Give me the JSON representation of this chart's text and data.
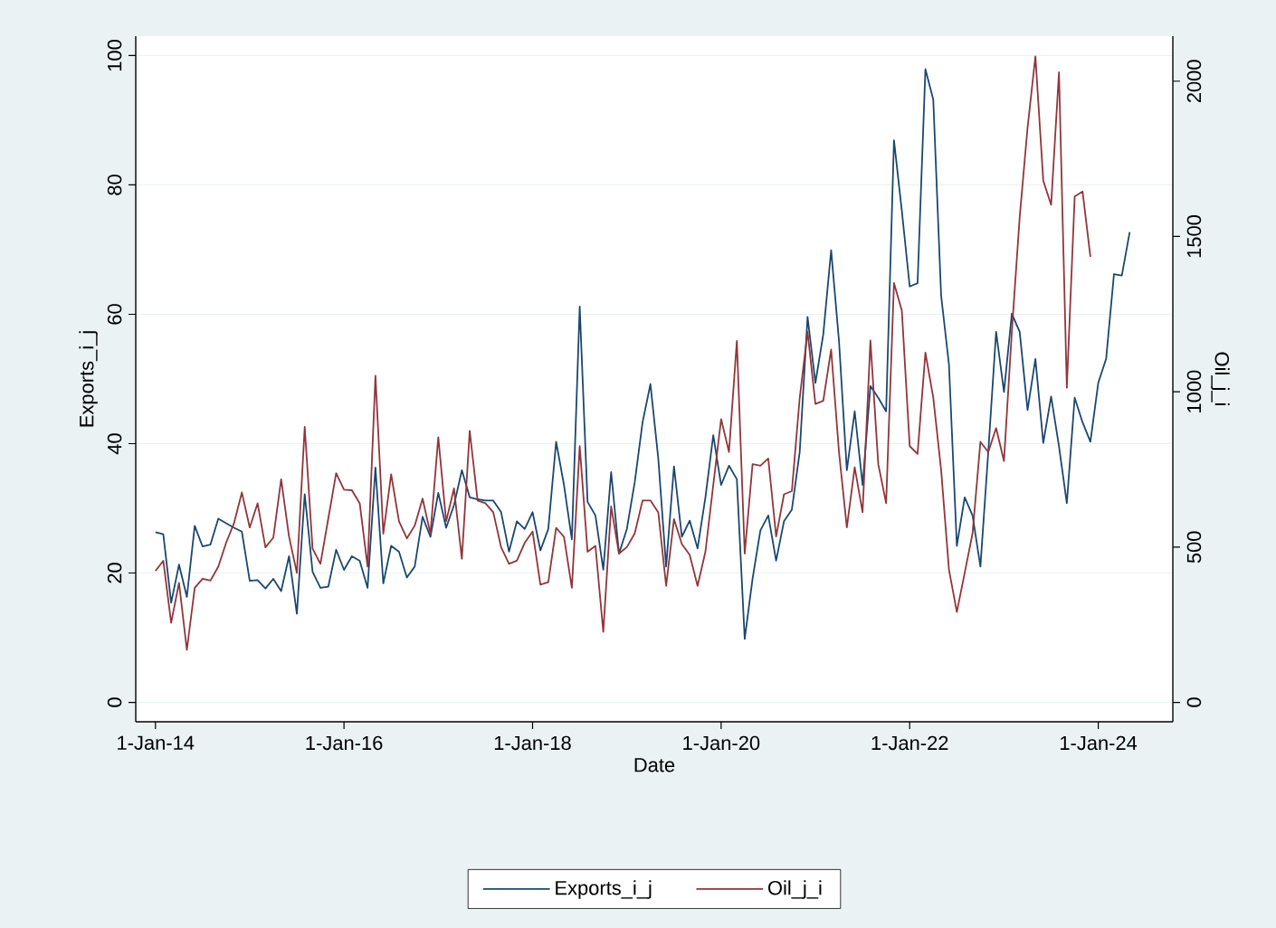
{
  "chart_data": {
    "type": "line",
    "xlabel": "Date",
    "ylabel": "Exports_i_j",
    "y2label": "Oil_j_i",
    "xlim": [
      "2013-10-16",
      "2024-10-16"
    ],
    "xticks": [
      {
        "value": "2014-01-01",
        "label": "1-Jan-14"
      },
      {
        "value": "2016-01-01",
        "label": "1-Jan-16"
      },
      {
        "value": "2018-01-01",
        "label": "1-Jan-18"
      },
      {
        "value": "2020-01-01",
        "label": "1-Jan-20"
      },
      {
        "value": "2022-01-01",
        "label": "1-Jan-22"
      },
      {
        "value": "2024-01-01",
        "label": "1-Jan-24"
      }
    ],
    "ylim": [
      -3,
      103
    ],
    "yticks": [
      0,
      20,
      40,
      60,
      80,
      100
    ],
    "y2lim": [
      -62.5,
      2145
    ],
    "y2ticks": [
      0,
      500,
      1000,
      1500,
      2000
    ],
    "grid": "y",
    "legend": "bottom",
    "series": [
      {
        "name": "Exports_i_j",
        "color": "#1a476f",
        "x": [
          "2014-01",
          "2014-02",
          "2014-03",
          "2014-04",
          "2014-05",
          "2014-06",
          "2014-07",
          "2014-08",
          "2014-09",
          "2014-10",
          "2014-11",
          "2014-12",
          "2015-01",
          "2015-02",
          "2015-03",
          "2015-04",
          "2015-05",
          "2015-06",
          "2015-07",
          "2015-08",
          "2015-09",
          "2015-10",
          "2015-11",
          "2015-12",
          "2016-01",
          "2016-02",
          "2016-03",
          "2016-04",
          "2016-05",
          "2016-06",
          "2016-07",
          "2016-08",
          "2016-09",
          "2016-10",
          "2016-11",
          "2016-12",
          "2017-01",
          "2017-02",
          "2017-03",
          "2017-04",
          "2017-05",
          "2017-06",
          "2017-07",
          "2017-08",
          "2017-09",
          "2017-10",
          "2017-11",
          "2017-12",
          "2018-01",
          "2018-02",
          "2018-03",
          "2018-04",
          "2018-05",
          "2018-06",
          "2018-07",
          "2018-08",
          "2018-09",
          "2018-10",
          "2018-11",
          "2018-12",
          "2019-01",
          "2019-02",
          "2019-03",
          "2019-04",
          "2019-05",
          "2019-06",
          "2019-07",
          "2019-08",
          "2019-09",
          "2019-10",
          "2019-11",
          "2019-12",
          "2020-01",
          "2020-02",
          "2020-03",
          "2020-04",
          "2020-05",
          "2020-06",
          "2020-07",
          "2020-08",
          "2020-09",
          "2020-10",
          "2020-11",
          "2020-12",
          "2021-01",
          "2021-02",
          "2021-03",
          "2021-04",
          "2021-05",
          "2021-06",
          "2021-07",
          "2021-08",
          "2021-09",
          "2021-10",
          "2021-11",
          "2021-12",
          "2022-01",
          "2022-02",
          "2022-03",
          "2022-04",
          "2022-05",
          "2022-06",
          "2022-07",
          "2022-08",
          "2022-09",
          "2022-10",
          "2022-11",
          "2022-12",
          "2023-01",
          "2023-02",
          "2023-03",
          "2023-04",
          "2023-05",
          "2023-06",
          "2023-07",
          "2023-08",
          "2023-09",
          "2023-10",
          "2023-11",
          "2023-12",
          "2024-01",
          "2024-02",
          "2024-03",
          "2024-04",
          "2024-05"
        ],
        "values": [
          26.3,
          26,
          15.4,
          21.3,
          16.3,
          27.3,
          24.1,
          24.4,
          28.4,
          27.7,
          27,
          26.4,
          18.8,
          18.9,
          17.6,
          19.1,
          17.2,
          22.6,
          13.7,
          32.2,
          20.2,
          17.7,
          17.9,
          23.6,
          20.5,
          22.6,
          21.9,
          17.7,
          36.3,
          18.4,
          24.2,
          23.3,
          19.3,
          21,
          28.7,
          25.6,
          32.4,
          27,
          30.5,
          35.9,
          31.7,
          31.4,
          31.2,
          31.2,
          29.4,
          23.3,
          28,
          26.8,
          29.4,
          23.5,
          26.8,
          40.3,
          33.6,
          25.2,
          61.2,
          31,
          28.9,
          20.5,
          35.6,
          23,
          26.8,
          34,
          43.3,
          49.2,
          37.7,
          21,
          36.5,
          25.6,
          28.1,
          23.8,
          31.7,
          41.3,
          33.6,
          36.6,
          34.5,
          9.8,
          19.1,
          26.6,
          28.9,
          21.9,
          28,
          29.8,
          38.7,
          59.6,
          49.4,
          56.9,
          69.9,
          55.9,
          35.9,
          45,
          33.6,
          48.9,
          47.1,
          45,
          86.9,
          76,
          64.3,
          64.8,
          97.9,
          93.2,
          62.9,
          52.2,
          24.2,
          31.7,
          28.9,
          21,
          38.7,
          57.3,
          48,
          60.1,
          57.3,
          45.2,
          53.1,
          40.1,
          47.3,
          39.6,
          30.8,
          47.1,
          43.3,
          40.3,
          49.4,
          53.1,
          66.2,
          66,
          72.7
        ]
      },
      {
        "name": "Oil_j_i",
        "color": "#90353b",
        "axis": "y2",
        "x": [
          "2014-01",
          "2014-02",
          "2014-03",
          "2014-04",
          "2014-05",
          "2014-06",
          "2014-07",
          "2014-08",
          "2014-09",
          "2014-10",
          "2014-11",
          "2014-12",
          "2015-01",
          "2015-02",
          "2015-03",
          "2015-04",
          "2015-05",
          "2015-06",
          "2015-07",
          "2015-08",
          "2015-09",
          "2015-10",
          "2015-11",
          "2015-12",
          "2016-01",
          "2016-02",
          "2016-03",
          "2016-04",
          "2016-05",
          "2016-06",
          "2016-07",
          "2016-08",
          "2016-09",
          "2016-10",
          "2016-11",
          "2016-12",
          "2017-01",
          "2017-02",
          "2017-03",
          "2017-04",
          "2017-05",
          "2017-06",
          "2017-07",
          "2017-08",
          "2017-09",
          "2017-10",
          "2017-11",
          "2017-12",
          "2018-01",
          "2018-02",
          "2018-03",
          "2018-04",
          "2018-05",
          "2018-06",
          "2018-07",
          "2018-08",
          "2018-09",
          "2018-10",
          "2018-11",
          "2018-12",
          "2019-01",
          "2019-02",
          "2019-03",
          "2019-04",
          "2019-05",
          "2019-06",
          "2019-07",
          "2019-08",
          "2019-09",
          "2019-10",
          "2019-11",
          "2019-12",
          "2020-01",
          "2020-02",
          "2020-03",
          "2020-04",
          "2020-05",
          "2020-06",
          "2020-07",
          "2020-08",
          "2020-09",
          "2020-10",
          "2020-11",
          "2020-12",
          "2021-01",
          "2021-02",
          "2021-03",
          "2021-04",
          "2021-05",
          "2021-06",
          "2021-07",
          "2021-08",
          "2021-09",
          "2021-10",
          "2021-11",
          "2021-12",
          "2022-01",
          "2022-02",
          "2022-03",
          "2022-04",
          "2022-05",
          "2022-06",
          "2022-07",
          "2022-08",
          "2022-09",
          "2022-10",
          "2022-11",
          "2022-12",
          "2023-01",
          "2023-02",
          "2023-03",
          "2023-04",
          "2023-05",
          "2023-06",
          "2023-07",
          "2023-08",
          "2023-09",
          "2023-10",
          "2023-11",
          "2023-12"
        ],
        "values": [
          423,
          456,
          256,
          385,
          169,
          369,
          398,
          392,
          437,
          514,
          577,
          676,
          563,
          641,
          499,
          530,
          718,
          534,
          417,
          887,
          495,
          446,
          592,
          738,
          685,
          683,
          641,
          437,
          1052,
          543,
          734,
          583,
          528,
          569,
          656,
          543,
          854,
          583,
          689,
          462,
          874,
          650,
          641,
          612,
          499,
          446,
          456,
          514,
          550,
          379,
          387,
          562,
          533,
          369,
          825,
          485,
          504,
          227,
          631,
          479,
          500,
          544,
          650,
          650,
          612,
          375,
          590,
          510,
          475,
          375,
          485,
          700,
          912,
          806,
          1164,
          479,
          767,
          762,
          785,
          534,
          670,
          680,
          980,
          1194,
          961,
          971,
          1136,
          806,
          563,
          757,
          612,
          1165,
          767,
          641,
          1350,
          1262,
          825,
          800,
          1126,
          981,
          748,
          427,
          291,
          417,
          544,
          839,
          806,
          883,
          777,
          1194,
          1563,
          1850,
          2080,
          1680,
          1602,
          2029,
          1013,
          1629,
          1645,
          1435
        ]
      }
    ]
  }
}
